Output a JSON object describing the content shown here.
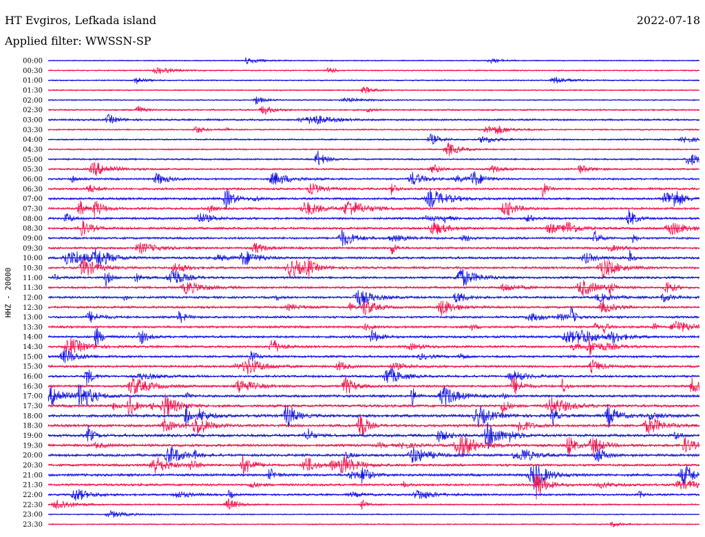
{
  "header": {
    "station": "HT Evgiros, Lefkada island",
    "date": "2022-07-18",
    "filter": "Applied filter: WWSSN-SP"
  },
  "chart_data": {
    "type": "line",
    "title": "HT Evgiros, Lefkada island",
    "subtitle": "Applied filter: WWSSN-SP",
    "ylabel": "HHZ - 20000",
    "xlabel": "",
    "grid": false,
    "legend": "none",
    "colors": {
      "blue": "#1010e0",
      "red": "#f0104a"
    },
    "rows": [
      {
        "label": "00:00",
        "color": "blue",
        "activity": 0.1
      },
      {
        "label": "00:30",
        "color": "red",
        "activity": 0.15
      },
      {
        "label": "01:00",
        "color": "blue",
        "activity": 0.12
      },
      {
        "label": "01:30",
        "color": "red",
        "activity": 0.15
      },
      {
        "label": "02:00",
        "color": "blue",
        "activity": 0.15
      },
      {
        "label": "02:30",
        "color": "red",
        "activity": 0.3
      },
      {
        "label": "03:00",
        "color": "blue",
        "activity": 0.4
      },
      {
        "label": "03:30",
        "color": "red",
        "activity": 0.25
      },
      {
        "label": "04:00",
        "color": "blue",
        "activity": 0.25
      },
      {
        "label": "04:30",
        "color": "red",
        "activity": 0.2
      },
      {
        "label": "05:00",
        "color": "blue",
        "activity": 0.35
      },
      {
        "label": "05:30",
        "color": "red",
        "activity": 0.4
      },
      {
        "label": "06:00",
        "color": "blue",
        "activity": 0.45
      },
      {
        "label": "06:30",
        "color": "red",
        "activity": 0.55
      },
      {
        "label": "07:00",
        "color": "blue",
        "activity": 0.6
      },
      {
        "label": "07:30",
        "color": "red",
        "activity": 0.55
      },
      {
        "label": "08:00",
        "color": "blue",
        "activity": 0.55
      },
      {
        "label": "08:30",
        "color": "red",
        "activity": 0.55
      },
      {
        "label": "09:00",
        "color": "blue",
        "activity": 0.55
      },
      {
        "label": "09:30",
        "color": "red",
        "activity": 0.55
      },
      {
        "label": "10:00",
        "color": "blue",
        "activity": 0.6
      },
      {
        "label": "10:30",
        "color": "red",
        "activity": 0.6
      },
      {
        "label": "11:00",
        "color": "blue",
        "activity": 0.55
      },
      {
        "label": "11:30",
        "color": "red",
        "activity": 0.55
      },
      {
        "label": "12:00",
        "color": "blue",
        "activity": 0.55
      },
      {
        "label": "12:30",
        "color": "red",
        "activity": 0.55
      },
      {
        "label": "13:00",
        "color": "blue",
        "activity": 0.55
      },
      {
        "label": "13:30",
        "color": "red",
        "activity": 0.55
      },
      {
        "label": "14:00",
        "color": "blue",
        "activity": 0.6
      },
      {
        "label": "14:30",
        "color": "red",
        "activity": 0.55
      },
      {
        "label": "15:00",
        "color": "blue",
        "activity": 0.55
      },
      {
        "label": "15:30",
        "color": "red",
        "activity": 0.55
      },
      {
        "label": "16:00",
        "color": "blue",
        "activity": 0.55
      },
      {
        "label": "16:30",
        "color": "red",
        "activity": 0.6
      },
      {
        "label": "17:00",
        "color": "blue",
        "activity": 0.65
      },
      {
        "label": "17:30",
        "color": "red",
        "activity": 0.75
      },
      {
        "label": "18:00",
        "color": "blue",
        "activity": 0.85
      },
      {
        "label": "18:30",
        "color": "red",
        "activity": 0.75
      },
      {
        "label": "19:00",
        "color": "blue",
        "activity": 0.8
      },
      {
        "label": "19:30",
        "color": "red",
        "activity": 0.75
      },
      {
        "label": "20:00",
        "color": "blue",
        "activity": 0.7
      },
      {
        "label": "20:30",
        "color": "red",
        "activity": 0.6
      },
      {
        "label": "21:00",
        "color": "blue",
        "activity": 0.65
      },
      {
        "label": "21:30",
        "color": "red",
        "activity": 0.6
      },
      {
        "label": "22:00",
        "color": "blue",
        "activity": 0.45
      },
      {
        "label": "22:30",
        "color": "red",
        "activity": 0.25
      },
      {
        "label": "23:00",
        "color": "blue",
        "activity": 0.15
      },
      {
        "label": "23:30",
        "color": "red",
        "activity": 0.12
      }
    ]
  }
}
